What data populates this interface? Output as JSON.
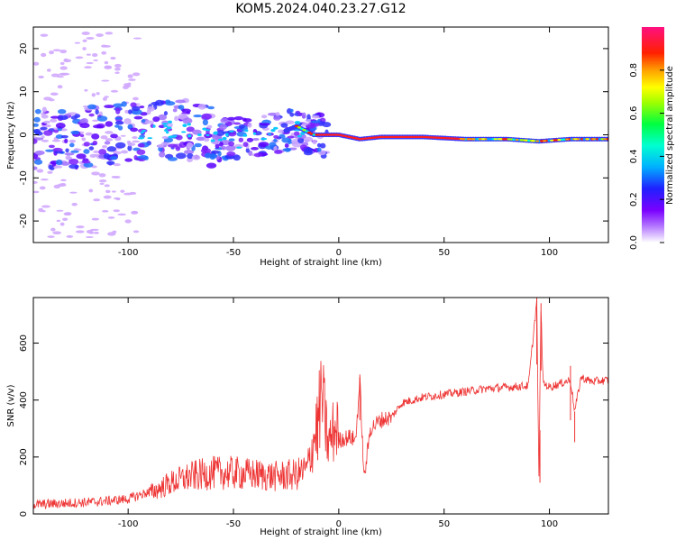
{
  "figure": {
    "title": "KOM5.2024.040.23.27.G12"
  },
  "chart_data": [
    {
      "type": "heatmap",
      "xlabel": "Height of straight line (km)",
      "ylabel": "Frequency (Hz)",
      "xlim": [
        -145,
        128
      ],
      "ylim": [
        -25,
        25
      ],
      "xticks": [
        -100,
        -50,
        0,
        50,
        100
      ],
      "xtick_labels": [
        "-100",
        "-50",
        "0",
        "50",
        "100"
      ],
      "yticks": [
        -20,
        -10,
        0,
        10,
        20
      ],
      "ytick_labels": [
        "-20",
        "-10",
        "0",
        "10",
        "20"
      ],
      "grid": false,
      "colorbar": {
        "label": "Normalized spectral amplitude",
        "range": [
          0,
          1
        ],
        "ticks": [
          0.0,
          0.2,
          0.4,
          0.6,
          0.8
        ],
        "tick_labels": [
          "0.0",
          "0.2",
          "0.4",
          "0.6",
          "0.8"
        ],
        "colormap": "rainbow-violet-to-red-to-magenta"
      },
      "ridge": {
        "description_points_x": [
          -130,
          -110,
          -90,
          -70,
          -55,
          -40,
          -30,
          -20,
          -12,
          -5,
          0,
          10,
          20,
          40,
          60,
          80,
          95,
          110,
          128
        ],
        "description_points_y": [
          -1,
          0,
          1,
          1,
          -1,
          -1,
          0,
          2,
          0,
          0,
          0,
          -1,
          -0.5,
          -0.5,
          -1,
          -1,
          -1.5,
          -1,
          -1
        ]
      }
    },
    {
      "type": "line",
      "xlabel": "Height of straight line (km)",
      "ylabel": "SNR (v/v)",
      "xlim": [
        -145,
        128
      ],
      "ylim": [
        0,
        760
      ],
      "xticks": [
        -100,
        -50,
        0,
        50,
        100
      ],
      "xtick_labels": [
        "-100",
        "-50",
        "0",
        "50",
        "100"
      ],
      "yticks": [
        0,
        200,
        400,
        600
      ],
      "ytick_labels": [
        "0",
        "200",
        "400",
        "600"
      ],
      "grid": false,
      "series": [
        {
          "color": "#ee3333",
          "x": [
            -145,
            -130,
            -115,
            -100,
            -90,
            -80,
            -70,
            -60,
            -50,
            -40,
            -30,
            -20,
            -15,
            -10,
            -8,
            -5,
            -2,
            0,
            5,
            8,
            10,
            12,
            15,
            20,
            25,
            30,
            40,
            50,
            60,
            70,
            80,
            90,
            94,
            95,
            96,
            97,
            100,
            110,
            112,
            115,
            120,
            128
          ],
          "y": [
            15,
            20,
            25,
            35,
            60,
            90,
            110,
            120,
            120,
            115,
            110,
            115,
            130,
            270,
            350,
            200,
            250,
            260,
            270,
            260,
            470,
            120,
            300,
            330,
            340,
            390,
            410,
            420,
            430,
            440,
            445,
            450,
            750,
            120,
            720,
            460,
            445,
            470,
            360,
            480,
            465,
            470
          ]
        }
      ]
    }
  ]
}
